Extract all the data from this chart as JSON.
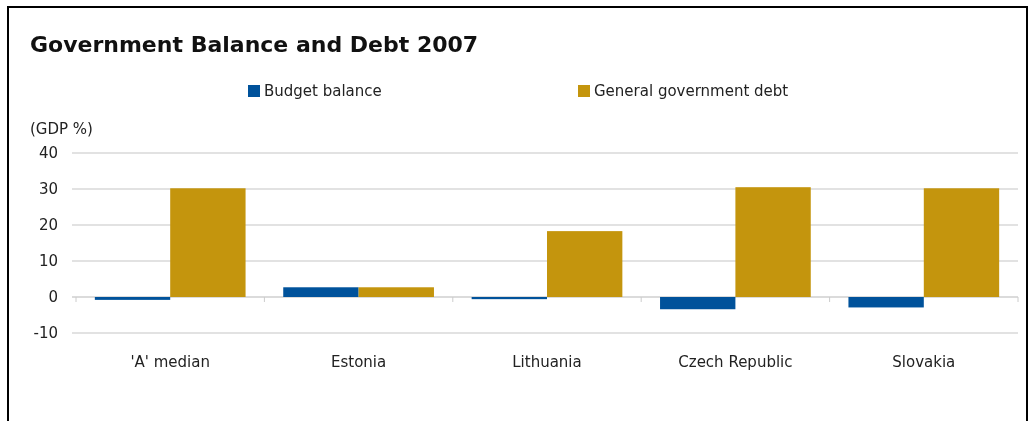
{
  "chart_data": {
    "type": "bar",
    "title": "Government Balance and Debt 2007",
    "ylabel": "(GDP %)",
    "categories": [
      "'A' median",
      "Estonia",
      "Lithuania",
      "Czech Republic",
      "Slovakia"
    ],
    "series": [
      {
        "name": "Budget balance",
        "color": "#00529b",
        "values": [
          -0.8,
          2.7,
          -0.6,
          -3.4,
          -2.9
        ]
      },
      {
        "name": "General government debt",
        "color": "#c4950d",
        "values": [
          30.2,
          2.7,
          18.3,
          30.5,
          30.2
        ]
      }
    ],
    "ylim": [
      -10,
      40
    ],
    "yticks": [
      -10,
      0,
      10,
      20,
      30,
      40
    ],
    "grid": "y",
    "legend": "top"
  }
}
